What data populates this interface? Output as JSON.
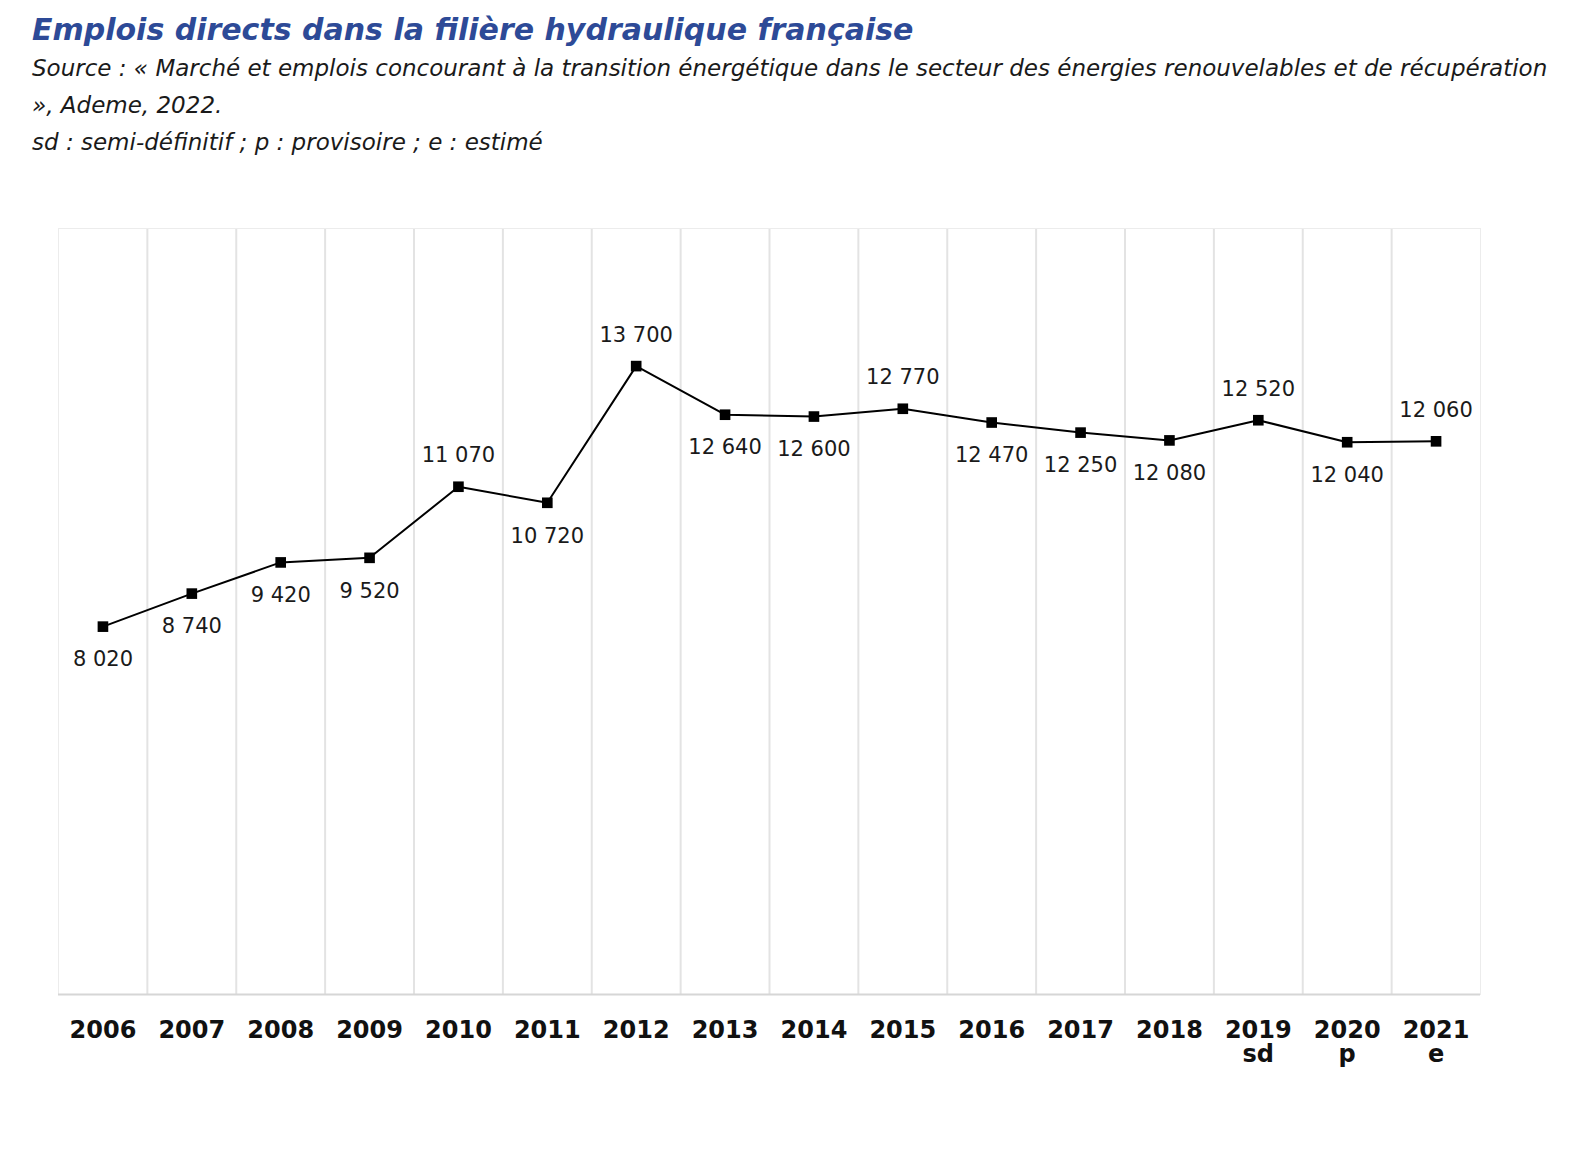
{
  "chart_data": {
    "type": "line",
    "title": "Emplois directs dans la filière hydraulique française",
    "source": "Source : « Marché et emplois concourant à la transition énergétique dans le secteur des énergies renouvelables et de récupération », Ademe, 2022.",
    "note": "sd : semi-définitif ; p : provisoire ; e : estimé",
    "categories": [
      "2006",
      "2007",
      "2008",
      "2009",
      "2010",
      "2011",
      "2012",
      "2013",
      "2014",
      "2015",
      "2016",
      "2017",
      "2018",
      "2019\nsd",
      "2020\np",
      "2021\ne"
    ],
    "values": [
      8020,
      8740,
      9420,
      9520,
      11070,
      10720,
      13700,
      12640,
      12600,
      12770,
      12470,
      12250,
      12080,
      12520,
      12040,
      12060
    ],
    "value_labels": [
      "8 020",
      "8 740",
      "9 420",
      "9 520",
      "11 070",
      "10 720",
      "13 700",
      "12 640",
      "12 600",
      "12 770",
      "12 470",
      "12 250",
      "12 080",
      "12 520",
      "12 040",
      "12 060"
    ],
    "color": "#000000",
    "marker": "square",
    "line_style": "solid",
    "ylim": [
      0,
      16700
    ],
    "yticks": [],
    "grid": true,
    "data_labels": true,
    "tick_labels": "x"
  }
}
